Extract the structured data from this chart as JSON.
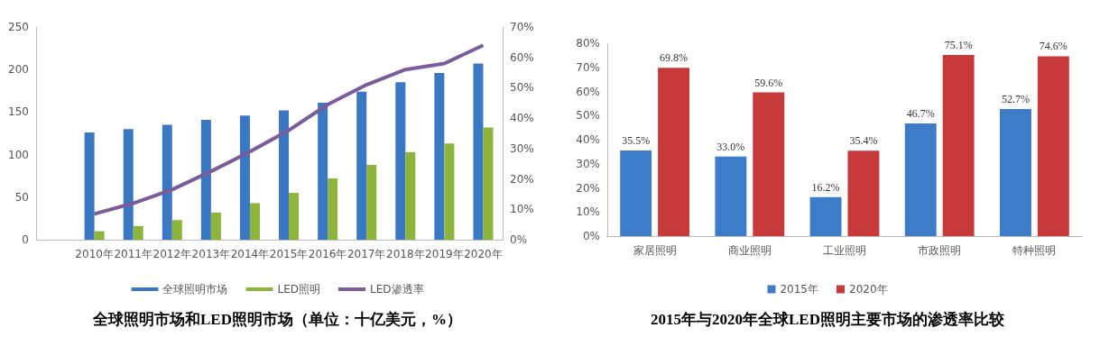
{
  "chart_data": [
    {
      "type": "bar",
      "title": "全球照明市场和LED照明市场（单位：十亿美元，%）",
      "categories": [
        null,
        "2010年",
        "2011年",
        "2012年",
        "2013年",
        "2014年",
        "2015年",
        "2016年",
        "2017年",
        "2018年",
        "2019年",
        "2020年"
      ],
      "series": [
        {
          "name": "全球照明市场",
          "color": "#3b78c4",
          "values": [
            null,
            126,
            130,
            135,
            141,
            146,
            152,
            161,
            174,
            185,
            196,
            207
          ]
        },
        {
          "name": "LED照明",
          "color": "#8db53c",
          "values": [
            null,
            10,
            16,
            23,
            32,
            43,
            55,
            72,
            88,
            103,
            113,
            132
          ]
        },
        {
          "name": "LED渗透率",
          "type": "line",
          "axis": "y2",
          "color": "#7b5c9b",
          "values": [
            null,
            8.5,
            12,
            16.5,
            22.5,
            29,
            36,
            44.5,
            51,
            56,
            58,
            64
          ]
        }
      ],
      "ylim": [
        0,
        250
      ],
      "yticks": [
        0,
        50,
        100,
        150,
        200,
        250
      ],
      "y2lim": [
        0,
        70
      ],
      "y2ticks": [
        {
          "value": 0,
          "label": "0%"
        },
        {
          "value": 10,
          "label": "10%"
        },
        {
          "value": 20,
          "label": "20%"
        },
        {
          "value": 30,
          "label": "30%"
        },
        {
          "value": 40,
          "label": "40%"
        },
        {
          "value": 50,
          "label": "50%"
        },
        {
          "value": 60,
          "label": "60%"
        },
        {
          "value": 70,
          "label": "70%"
        }
      ],
      "legend": "bottom",
      "marker": "none",
      "grid": false
    },
    {
      "type": "bar",
      "title": "2015年与2020年全球LED照明主要市场的渗透率比较",
      "categories": [
        "家居照明",
        "商业照明",
        "工业照明",
        "市政照明",
        "特种照明"
      ],
      "series": [
        {
          "name": "2015年",
          "color": "#3d7cc9",
          "values": [
            35.5,
            33.0,
            16.2,
            46.7,
            52.7
          ],
          "value_labels": [
            "35.5%",
            "33.0%",
            "16.2%",
            "46.7%",
            "52.7%"
          ]
        },
        {
          "name": "2020年",
          "color": "#c83a3a",
          "values": [
            69.8,
            59.6,
            35.4,
            75.1,
            74.6
          ],
          "value_labels": [
            "69.8%",
            "59.6%",
            "35.4%",
            "75.1%",
            "74.6%"
          ]
        }
      ],
      "ylim": [
        0,
        80
      ],
      "yticks": [
        {
          "value": 0,
          "label": "0%"
        },
        {
          "value": 10,
          "label": "10%"
        },
        {
          "value": 20,
          "label": "20%"
        },
        {
          "value": 30,
          "label": "30%"
        },
        {
          "value": 40,
          "label": "40%"
        },
        {
          "value": 50,
          "label": "50%"
        },
        {
          "value": 60,
          "label": "60%"
        },
        {
          "value": 70,
          "label": "70%"
        },
        {
          "value": 80,
          "label": "80%"
        }
      ],
      "legend": "bottom",
      "grid": false
    }
  ]
}
